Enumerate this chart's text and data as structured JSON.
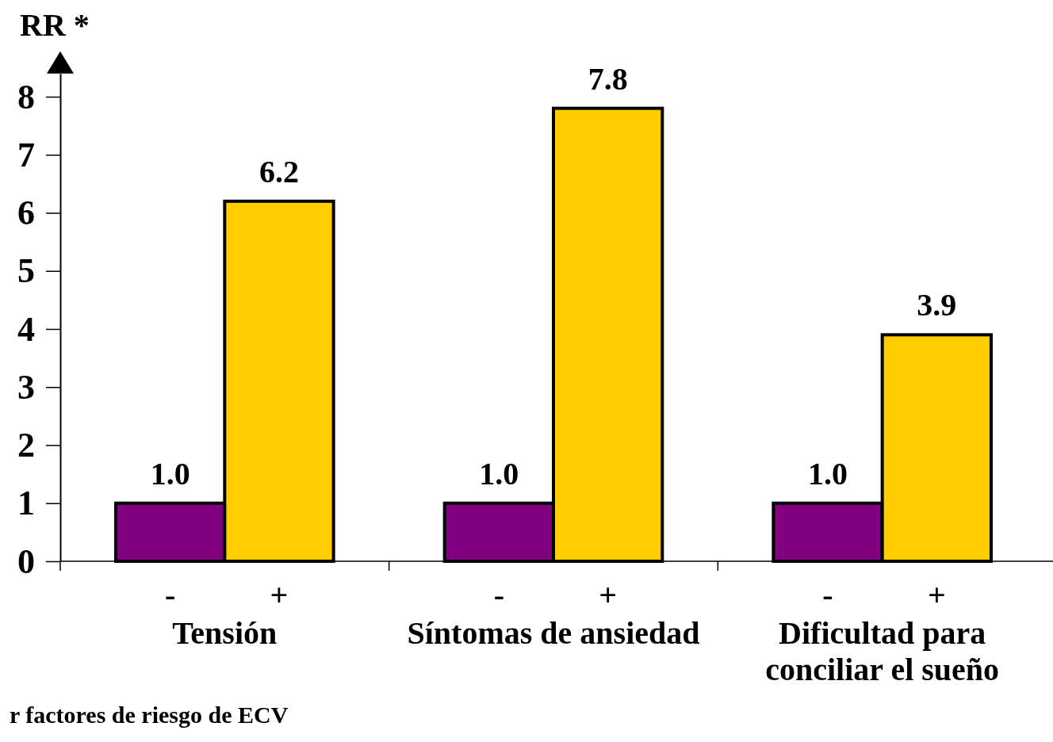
{
  "chart_data": {
    "type": "bar",
    "ylabel": "RR *",
    "categories": [
      "Tensión",
      "Síntomas de ansiedad",
      "Dificultad para conciliar el sueño"
    ],
    "series": [
      {
        "name": "-",
        "color": "#800080",
        "values": [
          1.0,
          1.0,
          1.0
        ],
        "value_labels": [
          "1.0",
          "1.0",
          "1.0"
        ]
      },
      {
        "name": "+",
        "color": "#ffcc00",
        "values": [
          6.2,
          7.8,
          3.9
        ],
        "value_labels": [
          "6.2",
          "7.8",
          "3.9"
        ]
      }
    ],
    "ylim": [
      0,
      8.4
    ],
    "yticks": [
      0,
      1,
      2,
      3,
      4,
      5,
      6,
      7,
      8
    ],
    "annotations": [
      "r factores de riesgo de ECV"
    ]
  }
}
